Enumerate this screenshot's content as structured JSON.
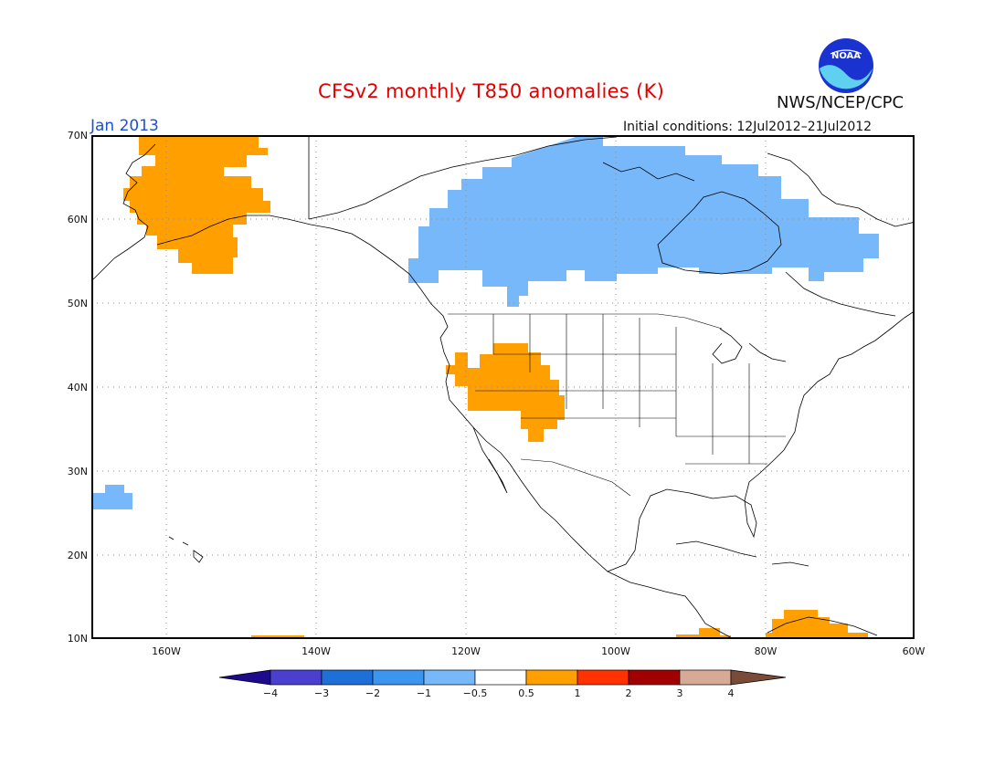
{
  "header": {
    "title": "CFSv2 monthly T850 anomalies (K)",
    "month": "Jan 2013",
    "initial_conditions": "Initial conditions: 12Jul2012–21Jul2012",
    "agency": "NWS/NCEP/CPC",
    "logo_text": "NOAA",
    "logo_icon": "noaa-logo-icon"
  },
  "map": {
    "extent": {
      "lon": [
        -170,
        -60
      ],
      "lat": [
        10,
        70
      ]
    },
    "lat_labels": [
      "70N",
      "60N",
      "50N",
      "40N",
      "30N",
      "20N",
      "10N"
    ],
    "lon_labels": [
      "160W",
      "140W",
      "120W",
      "100W",
      "80W",
      "60W"
    ],
    "grid": "dotted",
    "anomaly_regions": [
      {
        "area": "Alaska",
        "category": "0.5 to 1",
        "color": "#ffa000"
      },
      {
        "area": "Canada / Hudson Bay",
        "category": "-1 to -0.5",
        "color": "#77b8fa"
      },
      {
        "area": "US Great Basin / Four Corners",
        "category": "0.5 to 1",
        "color": "#ffa000"
      },
      {
        "area": "Subtropical eastern Pacific (~27N, 168W)",
        "category": "-1 to -0.5",
        "color": "#77b8fa"
      },
      {
        "area": "Northern South America / Caribbean",
        "category": "0.5 to 1",
        "color": "#ffa000"
      },
      {
        "area": "Central America coast",
        "category": "0.5 to 1",
        "color": "#ffa000"
      }
    ]
  },
  "colorbar": {
    "labels": [
      "−4",
      "−3",
      "−2",
      "−1",
      "−0.5",
      "0.5",
      "1",
      "2",
      "3",
      "4"
    ],
    "colors": [
      "#1e0a8c",
      "#4b3fd0",
      "#1e6fd8",
      "#3c96f0",
      "#77b8fa",
      "#ffffff",
      "#ffa000",
      "#ff3200",
      "#a00000",
      "#d7aa96",
      "#7a4b36"
    ]
  }
}
